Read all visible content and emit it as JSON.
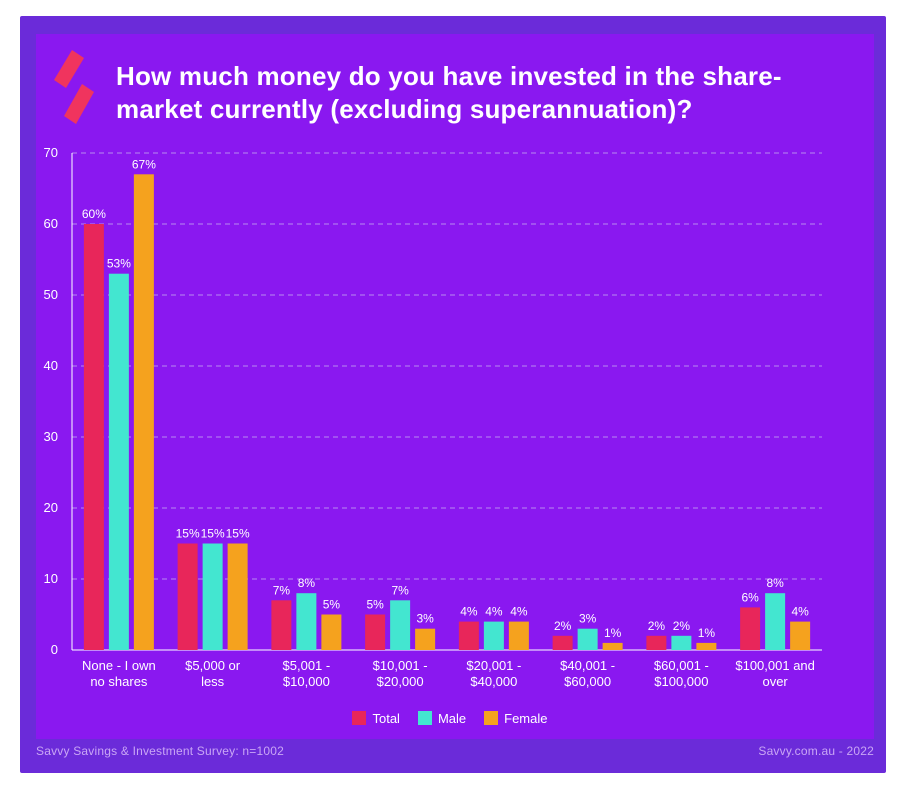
{
  "title": "How much money do you have invested in the share-market currently (excluding superannuation)?",
  "footer": {
    "left": "Savvy Savings & Investment Survey: n=1002",
    "right": "Savvy.com.au - 2022"
  },
  "colors": {
    "background": "#8a18f0",
    "frame": "#6b2bd9",
    "total": "#e8265a",
    "male": "#43e6d0",
    "female": "#f5a21e",
    "logo": "#f0345e"
  },
  "chart_data": {
    "type": "bar",
    "title": "How much money do you have invested in the share-market currently (excluding superannuation)?",
    "xlabel": "",
    "ylabel": "",
    "ylim": [
      0,
      70
    ],
    "yticks": [
      0,
      10,
      20,
      30,
      40,
      50,
      60,
      70
    ],
    "grid": true,
    "legend_position": "bottom",
    "categories": [
      [
        "None - I own",
        "no shares"
      ],
      [
        "$5,000 or",
        "less"
      ],
      [
        "$5,001 -",
        "$10,000"
      ],
      [
        "$10,001 -",
        "$20,000"
      ],
      [
        "$20,001 -",
        "$40,000"
      ],
      [
        "$40,001 -",
        "$60,000"
      ],
      [
        "$60,001 -",
        "$100,000"
      ],
      [
        "$100,001 and",
        "over"
      ]
    ],
    "series": [
      {
        "name": "Total",
        "color": "#e8265a",
        "values": [
          60,
          15,
          7,
          5,
          4,
          2,
          2,
          6
        ],
        "labels": [
          "60%",
          "15%",
          "7%",
          "5%",
          "4%",
          "2%",
          "2%",
          "6%"
        ]
      },
      {
        "name": "Male",
        "color": "#43e6d0",
        "values": [
          53,
          15,
          8,
          7,
          4,
          3,
          2,
          8
        ],
        "labels": [
          "53%",
          "15%",
          "8%",
          "7%",
          "4%",
          "3%",
          "2%",
          "8%"
        ]
      },
      {
        "name": "Female",
        "color": "#f5a21e",
        "values": [
          67,
          15,
          5,
          3,
          4,
          1,
          1,
          4
        ],
        "labels": [
          "67%",
          "15%",
          "5%",
          "3%",
          "4%",
          "1%",
          "1%",
          "4%"
        ]
      }
    ]
  }
}
